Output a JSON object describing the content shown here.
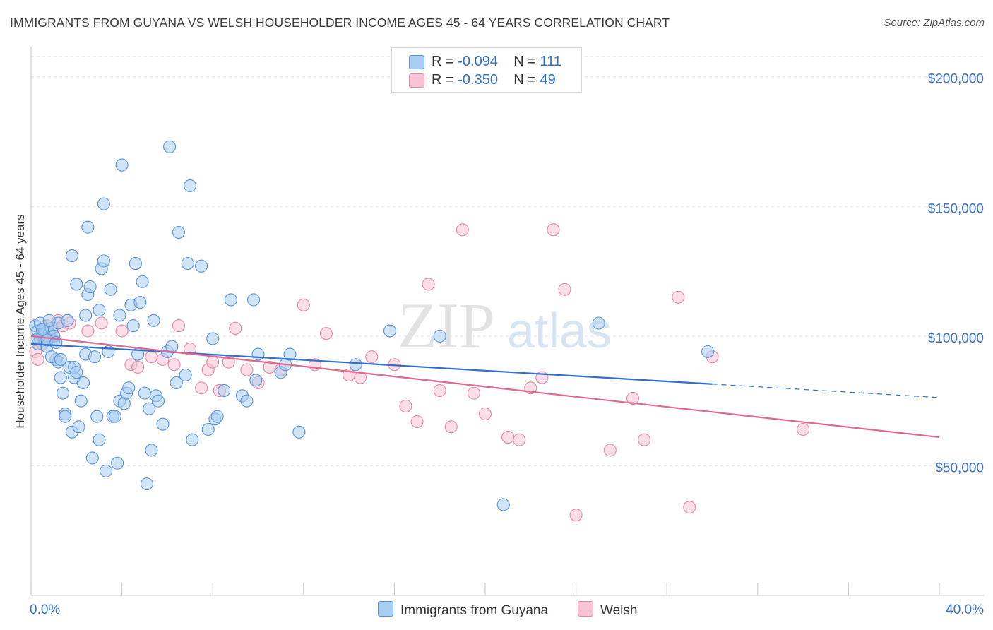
{
  "chart_data": {
    "type": "scatter",
    "title": "IMMIGRANTS FROM GUYANA VS WELSH HOUSEHOLDER INCOME AGES 45 - 64 YEARS CORRELATION CHART",
    "source": "Source: ZipAtlas.com",
    "watermark": {
      "zip": "ZIP",
      "atlas": "atlas"
    },
    "ylabel": "Householder Income Ages 45 - 64 years",
    "xlim": [
      0,
      40
    ],
    "ylim": [
      0,
      210000
    ],
    "x_tick_labels": [
      "0.0%",
      "40.0%"
    ],
    "y_ticks": [
      {
        "value": 50000,
        "label": "$50,000"
      },
      {
        "value": 100000,
        "label": "$100,000"
      },
      {
        "value": 150000,
        "label": "$150,000"
      },
      {
        "value": 200000,
        "label": "$200,000"
      }
    ],
    "legend": [
      {
        "r_label": "R = ",
        "r_value": "-0.094",
        "n_label": "N = ",
        "n_value": "111",
        "color": "#9ec5ef"
      },
      {
        "r_label": "R = ",
        "r_value": "-0.350",
        "n_label": "N = ",
        "n_value": "49",
        "color": "#f4b3c8"
      }
    ],
    "series": [
      {
        "name": "Immigrants from Guyana",
        "fill": "#a9cdf2",
        "stroke": "#5b93d9",
        "line_color": "#2f6fd0",
        "trend": {
          "x0": 0,
          "y0": 97000,
          "x1": 30,
          "y1": 81500,
          "dash_to_x": 40,
          "dash_to_y": 76300
        },
        "points": [
          [
            0.2,
            104000
          ],
          [
            0.3,
            102000
          ],
          [
            0.3,
            97000
          ],
          [
            0.4,
            99000
          ],
          [
            0.5,
            101000
          ],
          [
            0.5,
            100000
          ],
          [
            0.6,
            102000
          ],
          [
            0.6,
            98000
          ],
          [
            0.7,
            96000
          ],
          [
            0.8,
            101000
          ],
          [
            0.8,
            99500
          ],
          [
            0.9,
            103000
          ],
          [
            1.0,
            98000
          ],
          [
            1.0,
            100000
          ],
          [
            1.1,
            91000
          ],
          [
            1.2,
            90000
          ],
          [
            1.2,
            105000
          ],
          [
            1.3,
            84000
          ],
          [
            1.4,
            78000
          ],
          [
            1.5,
            70000
          ],
          [
            1.5,
            69000
          ],
          [
            1.6,
            106000
          ],
          [
            1.7,
            88000
          ],
          [
            1.8,
            63000
          ],
          [
            1.8,
            131000
          ],
          [
            1.9,
            88000
          ],
          [
            1.9,
            84000
          ],
          [
            2.0,
            86000
          ],
          [
            2.0,
            120000
          ],
          [
            2.1,
            65000
          ],
          [
            2.2,
            75000
          ],
          [
            2.3,
            82000
          ],
          [
            2.4,
            108000
          ],
          [
            2.4,
            93000
          ],
          [
            2.5,
            142000
          ],
          [
            2.5,
            116000
          ],
          [
            2.6,
            119000
          ],
          [
            2.7,
            53000
          ],
          [
            2.8,
            92000
          ],
          [
            2.9,
            69000
          ],
          [
            3.0,
            110000
          ],
          [
            3.0,
            60000
          ],
          [
            3.1,
            126000
          ],
          [
            3.2,
            151000
          ],
          [
            3.2,
            129000
          ],
          [
            3.3,
            48000
          ],
          [
            3.4,
            94000
          ],
          [
            3.5,
            118000
          ],
          [
            3.6,
            69000
          ],
          [
            3.7,
            69000
          ],
          [
            3.8,
            51000
          ],
          [
            3.9,
            108000
          ],
          [
            3.9,
            75000
          ],
          [
            4.0,
            166000
          ],
          [
            4.1,
            74000
          ],
          [
            4.2,
            78000
          ],
          [
            4.3,
            80000
          ],
          [
            4.4,
            112000
          ],
          [
            4.5,
            104000
          ],
          [
            4.6,
            128000
          ],
          [
            4.7,
            93000
          ],
          [
            4.8,
            113000
          ],
          [
            4.9,
            121000
          ],
          [
            5.0,
            78000
          ],
          [
            5.1,
            43000
          ],
          [
            5.2,
            72000
          ],
          [
            5.3,
            56000
          ],
          [
            5.4,
            106000
          ],
          [
            5.5,
            77000
          ],
          [
            5.6,
            75000
          ],
          [
            5.8,
            66000
          ],
          [
            6.0,
            94000
          ],
          [
            6.1,
            173000
          ],
          [
            6.2,
            96000
          ],
          [
            6.4,
            82000
          ],
          [
            6.5,
            140000
          ],
          [
            6.8,
            85000
          ],
          [
            6.9,
            128000
          ],
          [
            7.0,
            158000
          ],
          [
            7.1,
            60000
          ],
          [
            7.5,
            127000
          ],
          [
            7.8,
            64000
          ],
          [
            8.0,
            99000
          ],
          [
            8.1,
            68000
          ],
          [
            8.2,
            69000
          ],
          [
            8.5,
            79000
          ],
          [
            8.8,
            114000
          ],
          [
            9.3,
            77000
          ],
          [
            9.5,
            75000
          ],
          [
            9.8,
            114000
          ],
          [
            9.9,
            83000
          ],
          [
            10.0,
            93000
          ],
          [
            11.0,
            86000
          ],
          [
            11.2,
            89000
          ],
          [
            11.4,
            93000
          ],
          [
            11.8,
            63000
          ],
          [
            14.3,
            89000
          ],
          [
            15.8,
            102000
          ],
          [
            18.0,
            100000
          ],
          [
            20.8,
            35000
          ],
          [
            25.0,
            105000
          ],
          [
            29.8,
            94000
          ],
          [
            0.4,
            105000
          ],
          [
            0.6,
            99000
          ],
          [
            0.9,
            92000
          ],
          [
            1.3,
            91000
          ],
          [
            0.3,
            99000
          ],
          [
            0.7,
            98500
          ],
          [
            0.5,
            102500
          ],
          [
            1.1,
            97500
          ],
          [
            0.8,
            106000
          ]
        ]
      },
      {
        "name": "Welsh",
        "fill": "#f8c3d4",
        "stroke": "#e48aa8",
        "line_color": "#e06890",
        "trend": {
          "x0": 0,
          "y0": 100000,
          "x1": 40,
          "y1": 61000
        },
        "points": [
          [
            0.2,
            94000
          ],
          [
            0.3,
            91000
          ],
          [
            0.5,
            97000
          ],
          [
            0.7,
            104000
          ],
          [
            0.9,
            102000
          ],
          [
            1.0,
            100000
          ],
          [
            1.2,
            106000
          ],
          [
            1.4,
            104000
          ],
          [
            1.7,
            105000
          ],
          [
            2.5,
            102000
          ],
          [
            3.1,
            105000
          ],
          [
            4.0,
            102000
          ],
          [
            4.4,
            89000
          ],
          [
            4.7,
            88000
          ],
          [
            5.3,
            92000
          ],
          [
            5.8,
            91000
          ],
          [
            6.3,
            89000
          ],
          [
            6.5,
            104000
          ],
          [
            7.0,
            95000
          ],
          [
            7.5,
            80000
          ],
          [
            7.8,
            87000
          ],
          [
            8.0,
            90000
          ],
          [
            8.3,
            79000
          ],
          [
            8.7,
            90000
          ],
          [
            9.0,
            103000
          ],
          [
            9.5,
            87000
          ],
          [
            10.0,
            82000
          ],
          [
            10.5,
            88000
          ],
          [
            11.0,
            87000
          ],
          [
            12.0,
            112000
          ],
          [
            12.5,
            89000
          ],
          [
            13.0,
            101000
          ],
          [
            14.0,
            85000
          ],
          [
            14.5,
            84000
          ],
          [
            15.0,
            92000
          ],
          [
            16.0,
            89000
          ],
          [
            16.5,
            73000
          ],
          [
            17.0,
            67000
          ],
          [
            17.5,
            120000
          ],
          [
            18.0,
            79000
          ],
          [
            18.5,
            65000
          ],
          [
            19.0,
            141000
          ],
          [
            19.5,
            78000
          ],
          [
            20.0,
            70000
          ],
          [
            21.0,
            61000
          ],
          [
            21.5,
            60000
          ],
          [
            22.0,
            80000
          ],
          [
            22.5,
            84000
          ],
          [
            23.0,
            141000
          ]
        ]
      }
    ],
    "extra_pink": [
      [
        23.5,
        118000
      ],
      [
        24.0,
        31000
      ],
      [
        25.5,
        56000
      ],
      [
        26.5,
        76000
      ],
      [
        27.0,
        60000
      ],
      [
        28.5,
        115000
      ],
      [
        29.0,
        34000
      ],
      [
        30.0,
        92000
      ],
      [
        34.0,
        64000
      ]
    ]
  }
}
